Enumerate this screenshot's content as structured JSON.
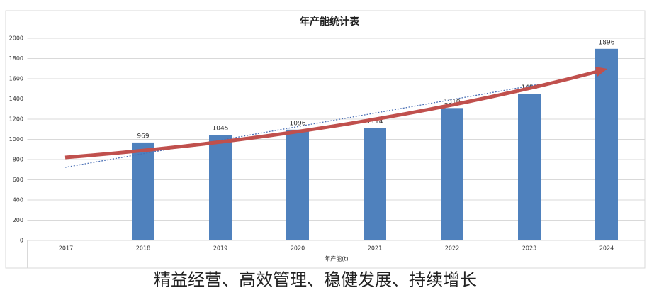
{
  "chart_data": {
    "type": "bar",
    "title": "年产能统计表",
    "x_label": "年产能(t)",
    "categories": [
      "2017",
      "2018",
      "2019",
      "2020",
      "2021",
      "2022",
      "2023",
      "2024"
    ],
    "values": [
      null,
      969,
      1045,
      1096,
      1114,
      1310,
      1450,
      1896
    ],
    "color": "#4f81bd",
    "ylim": [
      0,
      2000
    ],
    "yticks": [
      0,
      200,
      400,
      600,
      800,
      1000,
      1200,
      1400,
      1600,
      1800,
      2000
    ],
    "grid": true
  },
  "caption": "精益经营、高效管理、稳健发展、持续增长"
}
